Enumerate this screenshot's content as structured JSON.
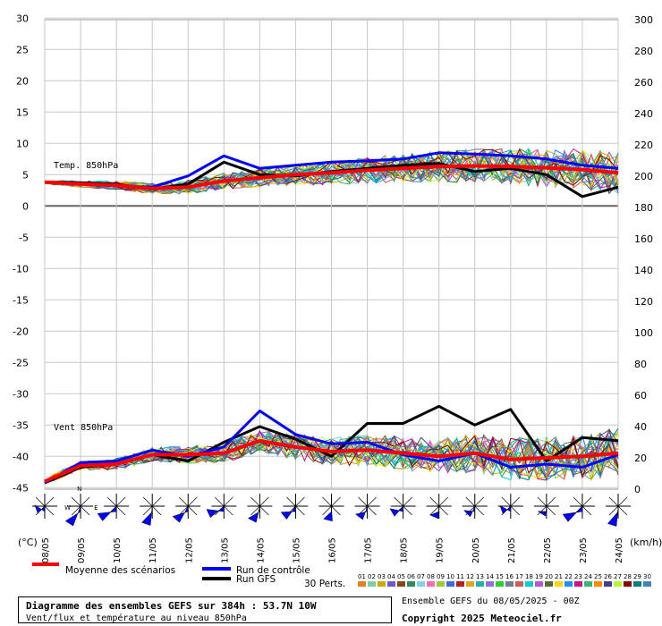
{
  "chart_data": {
    "type": "line",
    "title": "Diagramme des ensembles GEFS sur 384h : 53.7N 10W",
    "subtitle": "Vent/flux et température au niveau 850hPa",
    "run": "Ensemble GEFS du 08/05/2025 - 00Z",
    "copyright": "Copyright 2025 Meteociel.fr",
    "x_categories": [
      "08/05",
      "09/05",
      "10/05",
      "11/05",
      "12/05",
      "13/05",
      "14/05",
      "15/05",
      "16/05",
      "17/05",
      "18/05",
      "19/05",
      "20/05",
      "21/05",
      "22/05",
      "23/05",
      "24/05"
    ],
    "y_left": {
      "label": "(°C)",
      "ticks": [
        30,
        25,
        20,
        15,
        10,
        5,
        0,
        -5,
        -10,
        -15,
        -20,
        -25,
        -30,
        -35,
        -40,
        -45
      ],
      "range": [
        -45,
        30
      ]
    },
    "y_right": {
      "label": "(km/h)",
      "ticks": [
        300,
        280,
        260,
        240,
        220,
        200,
        180,
        160,
        140,
        120,
        100,
        80,
        60,
        40,
        20,
        0
      ],
      "range": [
        0,
        300
      ]
    },
    "panels": [
      {
        "name": "Temp. 850hPa",
        "unit": "°C",
        "mean": [
          3.8,
          3.5,
          3.3,
          2.8,
          3.0,
          4.0,
          4.5,
          5.0,
          5.3,
          5.7,
          6.0,
          6.3,
          6.4,
          6.3,
          6.1,
          5.8,
          5.3
        ],
        "control": [
          3.8,
          3.6,
          3.2,
          3.0,
          4.8,
          8.0,
          6.0,
          6.5,
          7.0,
          7.2,
          7.5,
          8.5,
          8.3,
          8.0,
          7.5,
          6.5,
          6.0
        ],
        "gfs": [
          3.8,
          3.7,
          3.5,
          2.7,
          3.5,
          7.0,
          5.0,
          4.8,
          5.5,
          6.0,
          6.5,
          6.8,
          5.5,
          6.0,
          5.0,
          1.5,
          3.0
        ]
      },
      {
        "name": "Vent 850hPa",
        "unit": "km/h",
        "mean": [
          5,
          15,
          16,
          22,
          22,
          23,
          31,
          27,
          24,
          25,
          23,
          21,
          23,
          19,
          20,
          21,
          23
        ],
        "control": [
          4,
          17,
          18,
          25,
          21,
          27,
          50,
          35,
          29,
          30,
          22,
          18,
          23,
          14,
          16,
          14,
          22
        ],
        "gfs": [
          4,
          14,
          16,
          22,
          18,
          30,
          40,
          32,
          21,
          42,
          42,
          53,
          41,
          51,
          18,
          33,
          31
        ]
      }
    ],
    "wind_roses_count": 17
  },
  "legend": {
    "mean": "Moyenne des scénarios",
    "control": "Run de contrôle",
    "gfs": "Run GFS",
    "perts": "30 Perts.",
    "colors": {
      "mean": "#ff0000",
      "control": "#0000ff",
      "gfs": "#000000"
    },
    "pert_numbers": [
      "01",
      "02",
      "03",
      "04",
      "05",
      "06",
      "07",
      "08",
      "09",
      "10",
      "11",
      "12",
      "13",
      "14",
      "15",
      "16",
      "17",
      "18",
      "19",
      "20",
      "21",
      "22",
      "23",
      "24",
      "25",
      "26",
      "27",
      "28",
      "29",
      "30"
    ],
    "pert_colors": [
      "#e67e22",
      "#7dcea0",
      "#ccaa00",
      "#6a5acd",
      "#8b4513",
      "#2e8b57",
      "#87ceeb",
      "#ff69b4",
      "#9acd32",
      "#4169e1",
      "#b22222",
      "#daa520",
      "#20b2aa",
      "#9370db",
      "#32cd32",
      "#708090",
      "#cd5c5c",
      "#00ced1",
      "#ba55d3",
      "#556b2f",
      "#ffd700",
      "#1e90ff",
      "#c71585",
      "#3cb371",
      "#ff8c00",
      "#483d8b",
      "#adff2f",
      "#8b0000",
      "#008080",
      "#4682b4"
    ]
  },
  "compass": {
    "n": "N",
    "w": "W",
    "e": "E"
  }
}
